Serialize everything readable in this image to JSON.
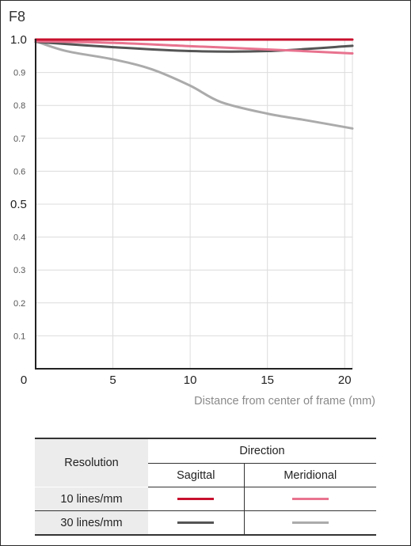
{
  "chart_data": {
    "type": "line",
    "title": "F8",
    "xlabel": "Distance from center of frame (mm)",
    "ylabel": "",
    "xlim": [
      0,
      20.5
    ],
    "ylim": [
      0,
      1.0
    ],
    "grid": true,
    "x_ticks": [
      "0",
      "5",
      "10",
      "15",
      "20"
    ],
    "y_ticks": [
      {
        "value": 1.0,
        "label": "1.0",
        "style": "major"
      },
      {
        "value": 0.9,
        "label": "0.9",
        "style": "minor"
      },
      {
        "value": 0.8,
        "label": "0.8",
        "style": "minor"
      },
      {
        "value": 0.7,
        "label": "0.7",
        "style": "minor"
      },
      {
        "value": 0.6,
        "label": "0.6",
        "style": "minor"
      },
      {
        "value": 0.5,
        "label": "0.5",
        "style": "major"
      },
      {
        "value": 0.4,
        "label": "0.4",
        "style": "minor"
      },
      {
        "value": 0.3,
        "label": "0.3",
        "style": "minor"
      },
      {
        "value": 0.2,
        "label": "0.2",
        "style": "minor"
      },
      {
        "value": 0.1,
        "label": "0.1",
        "style": "minor"
      }
    ],
    "series": [
      {
        "name": "10 lines/mm Sagittal",
        "color": "#c8102e",
        "x": [
          0,
          5,
          10,
          15,
          20.5
        ],
        "y": [
          1.0,
          1.0,
          1.0,
          1.0,
          1.0
        ]
      },
      {
        "name": "10 lines/mm Meridional",
        "color": "#e8738f",
        "x": [
          0,
          5,
          10,
          15,
          20.5
        ],
        "y": [
          0.995,
          0.99,
          0.98,
          0.97,
          0.958
        ]
      },
      {
        "name": "30 lines/mm Sagittal",
        "color": "#555555",
        "x": [
          0,
          5,
          10,
          15,
          20.5
        ],
        "y": [
          0.993,
          0.977,
          0.965,
          0.965,
          0.981
        ]
      },
      {
        "name": "30 lines/mm Meridional",
        "color": "#ababab",
        "x": [
          0,
          2,
          5,
          7.5,
          10,
          12,
          15,
          17.5,
          20.5
        ],
        "y": [
          0.995,
          0.965,
          0.94,
          0.91,
          0.86,
          0.81,
          0.775,
          0.755,
          0.73
        ]
      }
    ]
  },
  "legend_table": {
    "resolution_header": "Resolution",
    "direction_header": "Direction",
    "sagittal_header": "Sagittal",
    "meridional_header": "Meridional",
    "rows": [
      {
        "label": "10 lines/mm",
        "sagittal_color": "#c8102e",
        "meridional_color": "#e8738f"
      },
      {
        "label": "30 lines/mm",
        "sagittal_color": "#555555",
        "meridional_color": "#ababab"
      }
    ]
  }
}
